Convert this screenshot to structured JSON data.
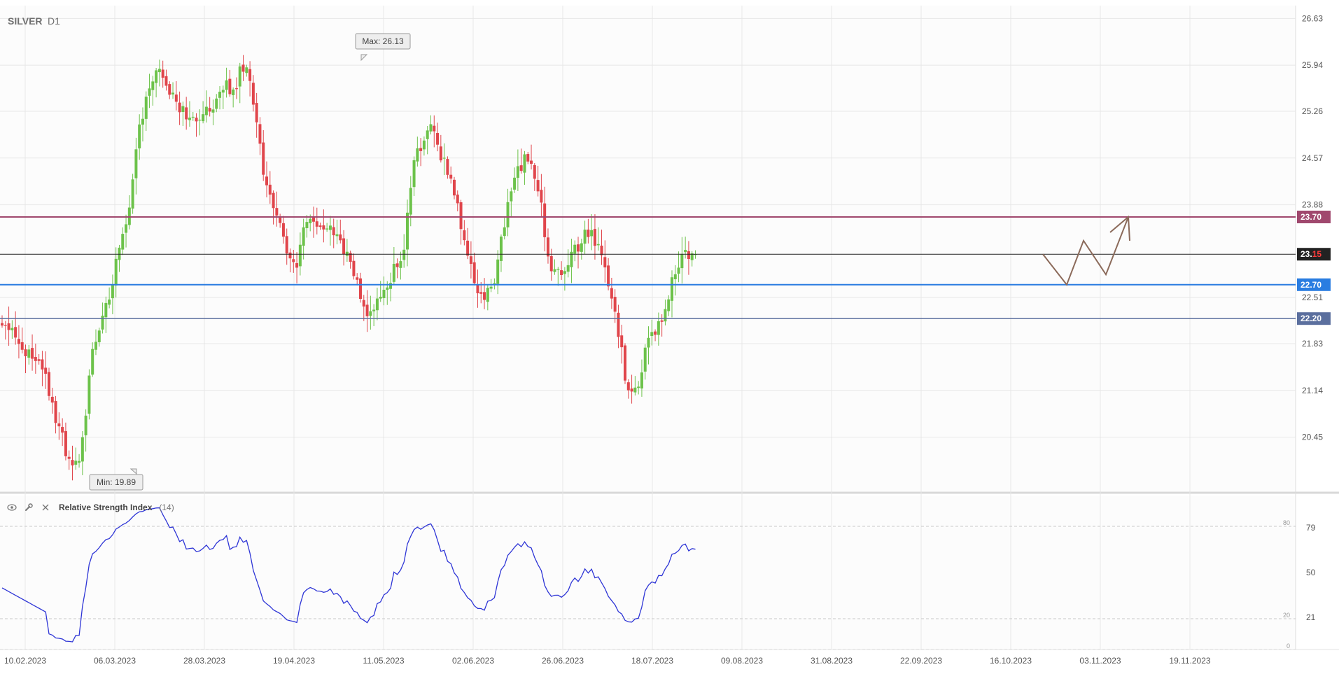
{
  "header": {
    "symbol": "SILVER",
    "timeframe": "D1"
  },
  "chart_data": {
    "type": "candlestick",
    "y_ticks": [
      26.63,
      25.94,
      25.26,
      24.57,
      23.88,
      22.51,
      21.83,
      21.14,
      20.45
    ],
    "x_ticks": [
      "10.02.2023",
      "06.03.2023",
      "28.03.2023",
      "19.04.2023",
      "11.05.2023",
      "02.06.2023",
      "26.06.2023",
      "18.07.2023",
      "09.08.2023",
      "31.08.2023",
      "22.09.2023",
      "16.10.2023",
      "03.11.2023",
      "19.11.2023"
    ],
    "ylim": [
      19.65,
      26.82
    ],
    "candle_count": 208,
    "close_path": [
      [
        0,
        22.18
      ],
      [
        10,
        21.7
      ],
      [
        20,
        21.35
      ],
      [
        22,
        20.9
      ],
      [
        30,
        20.1
      ],
      [
        35,
        20.2
      ],
      [
        40,
        21.7
      ],
      [
        48,
        22.6
      ],
      [
        56,
        23.75
      ],
      [
        62,
        25.2
      ],
      [
        70,
        25.9
      ],
      [
        75,
        25.5
      ],
      [
        84,
        25.1
      ],
      [
        89,
        25.2
      ],
      [
        94,
        25.4
      ],
      [
        100,
        25.7
      ],
      [
        103,
        25.5
      ],
      [
        106,
        25.9
      ],
      [
        110,
        25.8
      ],
      [
        117,
        24.2
      ],
      [
        125,
        23.4
      ],
      [
        130,
        22.9
      ],
      [
        135,
        23.7
      ],
      [
        140,
        23.45
      ],
      [
        148,
        23.5
      ],
      [
        157,
        22.8
      ],
      [
        162,
        22.2
      ],
      [
        170,
        22.7
      ],
      [
        178,
        23.1
      ],
      [
        183,
        24.5
      ],
      [
        190,
        25.1
      ],
      [
        196,
        24.5
      ],
      [
        201,
        24.1
      ],
      [
        207,
        23.1
      ],
      [
        213,
        22.5
      ],
      [
        218,
        22.7
      ],
      [
        226,
        24.1
      ],
      [
        232,
        24.6
      ],
      [
        238,
        24.2
      ],
      [
        243,
        23.0
      ],
      [
        248,
        22.8
      ],
      [
        252,
        23.1
      ],
      [
        257,
        23.3
      ],
      [
        260,
        23.5
      ],
      [
        265,
        23.3
      ],
      [
        270,
        22.7
      ],
      [
        275,
        21.8
      ],
      [
        278,
        21.1
      ],
      [
        283,
        21.3
      ],
      [
        288,
        22.0
      ],
      [
        293,
        22.1
      ],
      [
        298,
        22.8
      ],
      [
        303,
        23.2
      ],
      [
        308,
        23.15
      ]
    ],
    "rsi": {
      "name": "Relative Strength Index",
      "param": "(14)",
      "y_ticks": [
        79,
        50,
        21
      ],
      "levels": [
        80,
        20,
        0
      ],
      "range": [
        0,
        100
      ]
    },
    "levels": [
      {
        "value": 23.7,
        "label": "23.70",
        "color": "#a0486e",
        "width": 2
      },
      {
        "value": 23.15,
        "label_main": "23.",
        "label_tail": "15",
        "color": "#222222",
        "width": 1
      },
      {
        "value": 22.7,
        "label": "22.70",
        "color": "#2a7de1",
        "width": 2
      },
      {
        "value": 22.2,
        "label": "22.20",
        "color": "#5b6f9e",
        "width": 1.5
      }
    ],
    "annotations": [
      {
        "label": "Max: 26.13",
        "value": 26.13
      },
      {
        "label": "Min: 19.89",
        "value": 19.89
      }
    ],
    "projection": {
      "color": "#8b6a5a",
      "points": [
        [
          23.15,
          0
        ],
        [
          22.7,
          1
        ],
        [
          23.35,
          2
        ],
        [
          22.85,
          3
        ],
        [
          23.7,
          4
        ]
      ]
    },
    "colors": {
      "up": "#6cc24a",
      "down": "#e0454b",
      "rsi_line": "#2e35d6",
      "grid": "#e7e7e7"
    }
  }
}
